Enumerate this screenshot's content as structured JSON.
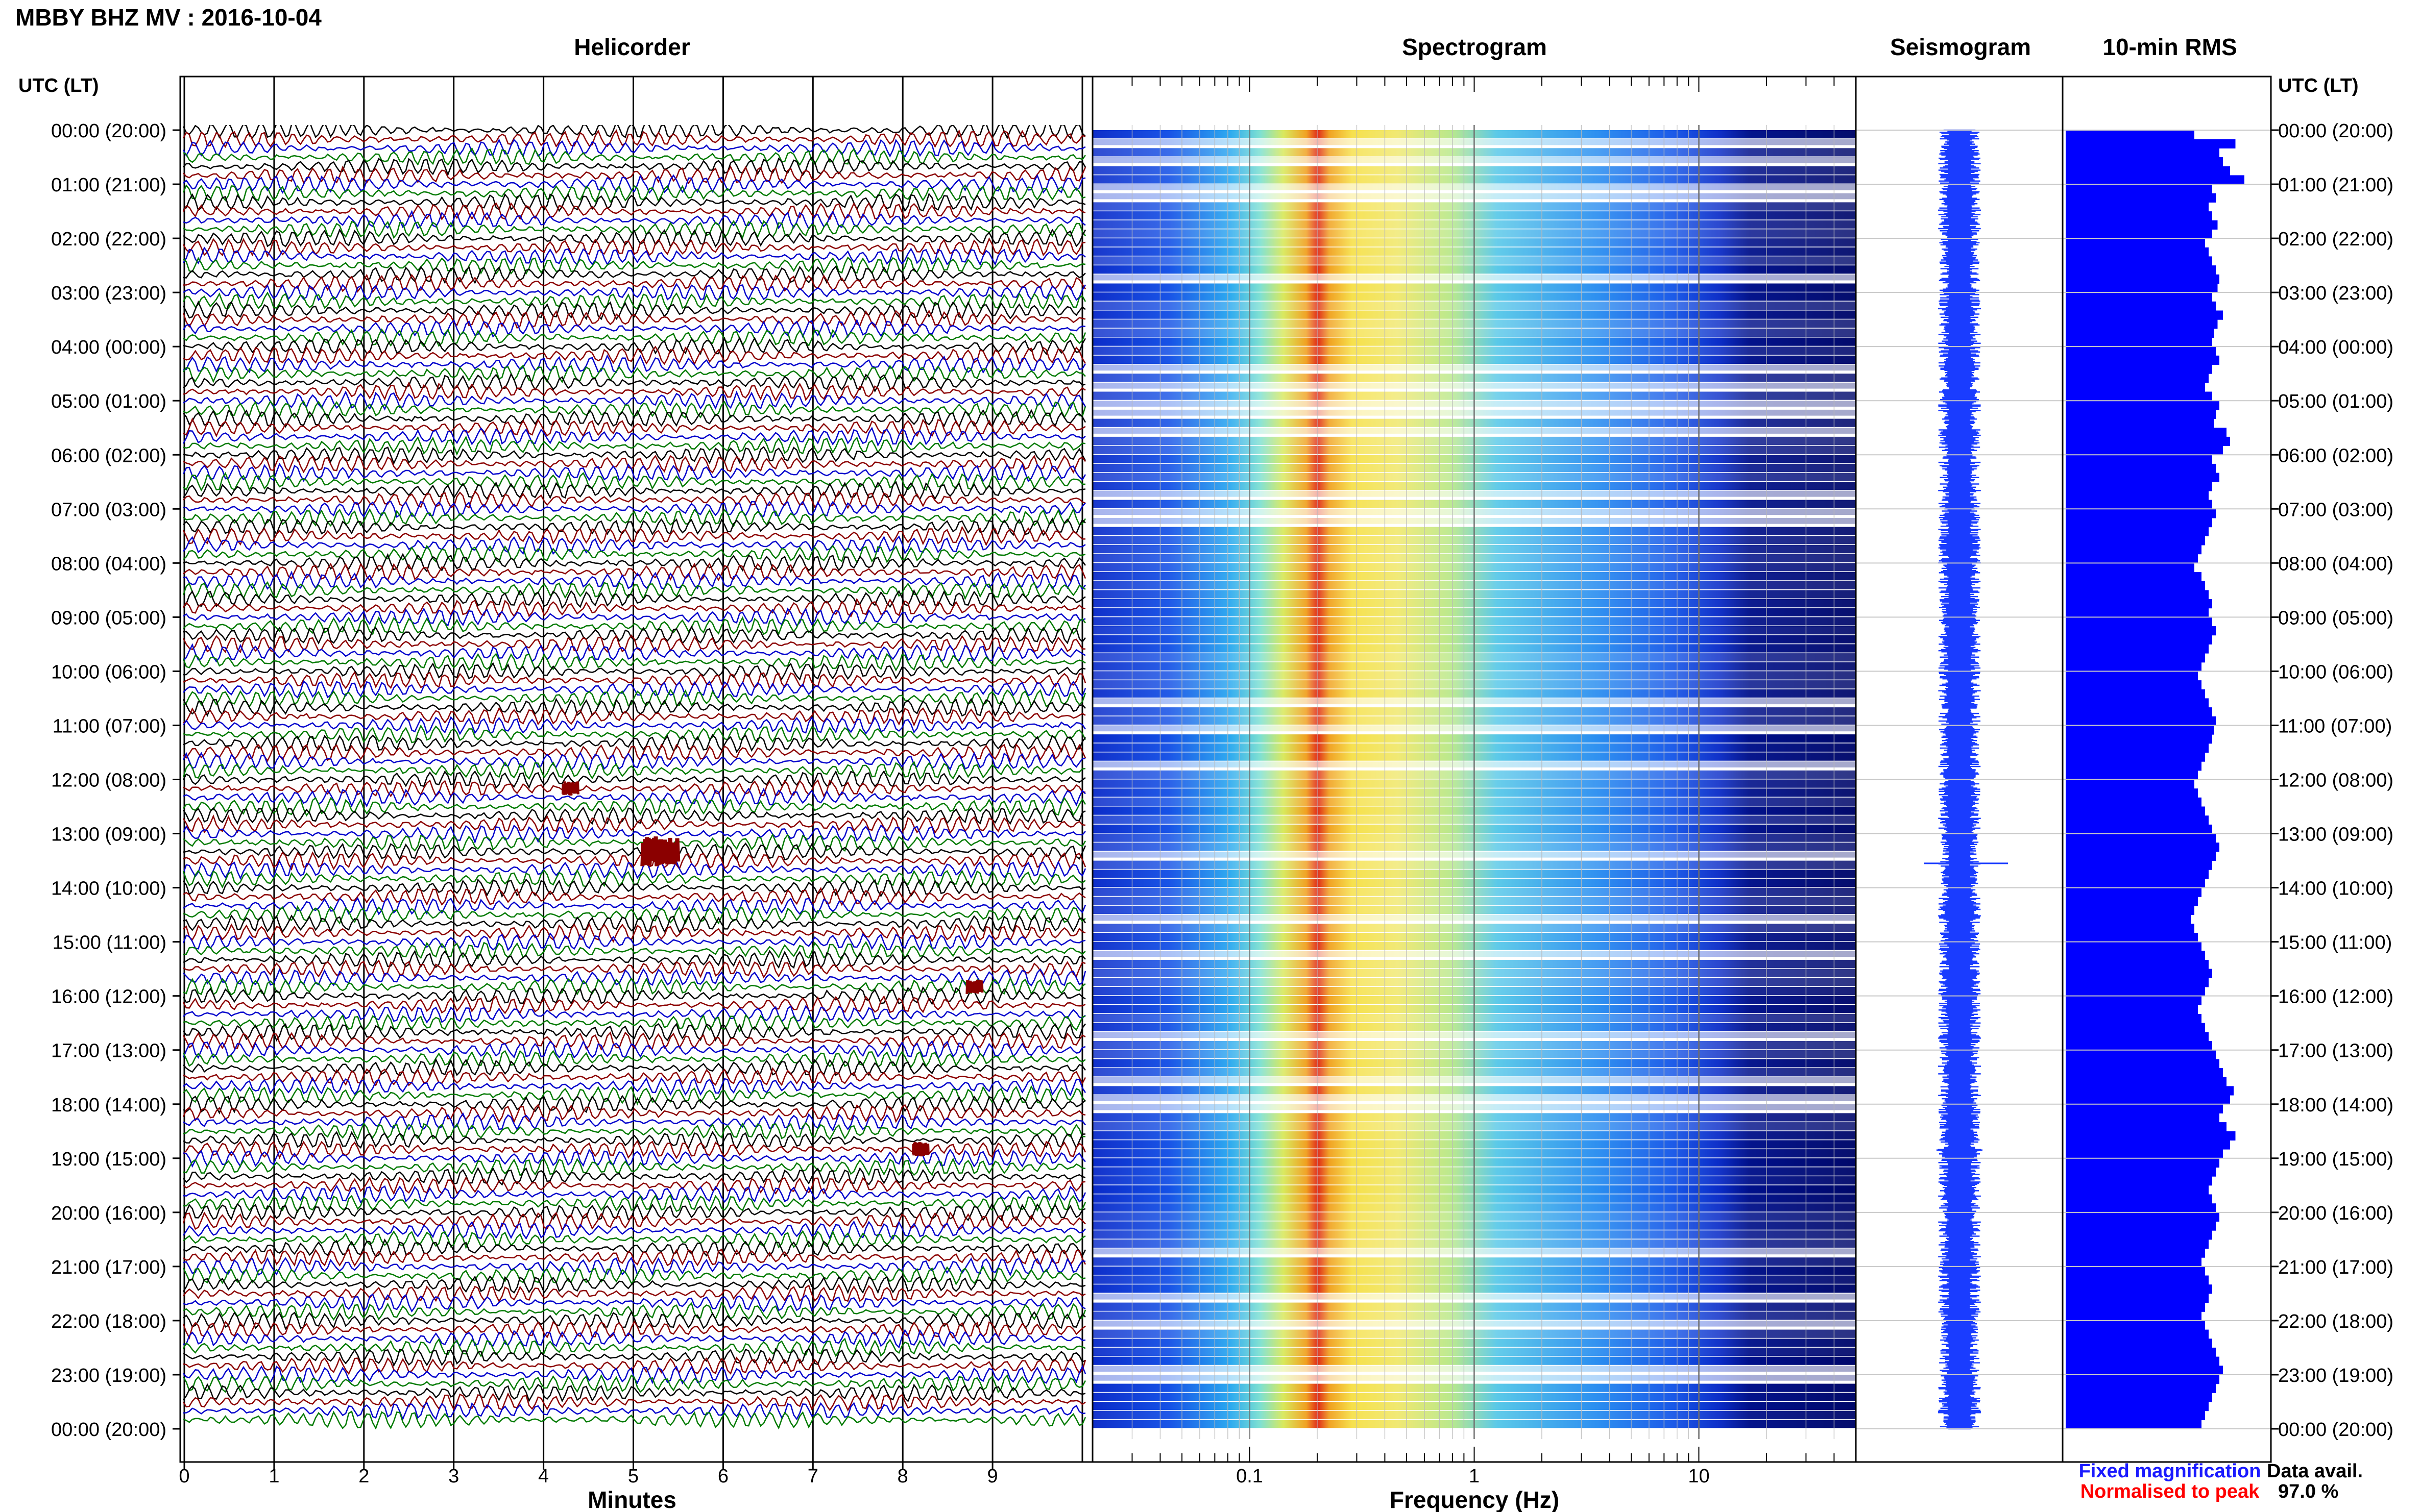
{
  "header": {
    "title": "MBBY BHZ MV : 2016-10-04"
  },
  "panels": {
    "helicorder": "Helicorder",
    "spectrogram": "Spectrogram",
    "seismogram": "Seismogram",
    "rms": "10-min RMS"
  },
  "time_axis": {
    "header": "UTC (LT)",
    "labels": [
      "00:00 (20:00)",
      "01:00 (21:00)",
      "02:00 (22:00)",
      "03:00 (23:00)",
      "04:00 (00:00)",
      "05:00 (01:00)",
      "06:00 (02:00)",
      "07:00 (03:00)",
      "08:00 (04:00)",
      "09:00 (05:00)",
      "10:00 (06:00)",
      "11:00 (07:00)",
      "12:00 (08:00)",
      "13:00 (09:00)",
      "14:00 (10:00)",
      "15:00 (11:00)",
      "16:00 (12:00)",
      "17:00 (13:00)",
      "18:00 (14:00)",
      "19:00 (15:00)",
      "20:00 (16:00)",
      "21:00 (17:00)",
      "22:00 (18:00)",
      "23:00 (19:00)",
      "00:00 (20:00)"
    ]
  },
  "x_axes": {
    "minutes": {
      "label": "Minutes",
      "ticks": [
        "0",
        "1",
        "2",
        "3",
        "4",
        "5",
        "6",
        "7",
        "8",
        "9"
      ]
    },
    "frequency": {
      "label": "Frequency (Hz)",
      "ticks": [
        "0.1",
        "1",
        "10"
      ]
    }
  },
  "legend": {
    "fixed": "Fixed magnification",
    "normalised": "Normalised to peak",
    "fixed_color": "#1a1aff",
    "normalised_color": "#ff0000"
  },
  "availability": {
    "label": "Data avail.",
    "value": "97.0 %"
  },
  "colors": {
    "trace_cycle": [
      "#000000",
      "#8b0000",
      "#0000cc",
      "#007a00"
    ],
    "rms_bar": "#0000ff",
    "seismogram": "#1a3cff",
    "spec_low": "#00008b",
    "spec_high": "#ff0000"
  },
  "chart_data": [
    {
      "type": "line",
      "title": "Helicorder",
      "xlabel": "Minutes",
      "xlim": [
        0,
        10
      ],
      "rows": 144,
      "row_minutes": 10,
      "trace_color_cycle": [
        "black",
        "dark red",
        "blue",
        "green"
      ],
      "events": [
        {
          "time_utc": "12:10",
          "minute": 4.3,
          "note": "small red burst"
        },
        {
          "time_utc": "13:20",
          "minute": 5.3,
          "note": "large red burst"
        },
        {
          "time_utc": "15:50",
          "minute": 8.8,
          "note": "small red burst"
        },
        {
          "time_utc": "18:50",
          "minute": 8.2,
          "note": "small red burst"
        }
      ]
    },
    {
      "type": "heatmap",
      "title": "Spectrogram",
      "xlabel": "Frequency (Hz)",
      "x_scale": "log",
      "xlim": [
        0.02,
        50
      ],
      "peak_frequency_hz": 0.25,
      "secondary_band_hz": [
        0.3,
        0.5
      ]
    },
    {
      "type": "line",
      "title": "Seismogram"
    },
    {
      "type": "bar",
      "title": "10-min RMS",
      "orientation": "horizontal",
      "rows": 144,
      "relative_values": [
        0.72,
        0.95,
        0.86,
        0.88,
        0.92,
        1.0,
        0.82,
        0.84,
        0.8,
        0.82,
        0.85,
        0.82,
        0.78,
        0.8,
        0.82,
        0.84,
        0.86,
        0.85,
        0.82,
        0.84,
        0.88,
        0.85,
        0.83,
        0.82,
        0.84,
        0.86,
        0.82,
        0.8,
        0.78,
        0.82,
        0.86,
        0.84,
        0.83,
        0.9,
        0.92,
        0.88,
        0.82,
        0.84,
        0.86,
        0.82,
        0.8,
        0.82,
        0.84,
        0.82,
        0.8,
        0.78,
        0.76,
        0.74,
        0.72,
        0.76,
        0.78,
        0.8,
        0.82,
        0.8,
        0.82,
        0.84,
        0.82,
        0.8,
        0.78,
        0.76,
        0.74,
        0.76,
        0.78,
        0.8,
        0.82,
        0.84,
        0.83,
        0.82,
        0.8,
        0.78,
        0.76,
        0.74,
        0.72,
        0.74,
        0.76,
        0.78,
        0.8,
        0.82,
        0.84,
        0.86,
        0.84,
        0.82,
        0.8,
        0.78,
        0.76,
        0.74,
        0.72,
        0.7,
        0.72,
        0.74,
        0.76,
        0.78,
        0.8,
        0.82,
        0.8,
        0.78,
        0.76,
        0.74,
        0.76,
        0.78,
        0.8,
        0.82,
        0.84,
        0.86,
        0.88,
        0.9,
        0.94,
        0.92,
        0.88,
        0.86,
        0.9,
        0.95,
        0.92,
        0.88,
        0.86,
        0.84,
        0.82,
        0.8,
        0.82,
        0.84,
        0.86,
        0.84,
        0.82,
        0.8,
        0.78,
        0.76,
        0.78,
        0.8,
        0.82,
        0.8,
        0.78,
        0.76,
        0.78,
        0.8,
        0.82,
        0.84,
        0.86,
        0.88,
        0.86,
        0.84,
        0.82,
        0.8,
        0.78,
        0.76
      ],
      "xlabel": "",
      "ylabel": ""
    }
  ]
}
